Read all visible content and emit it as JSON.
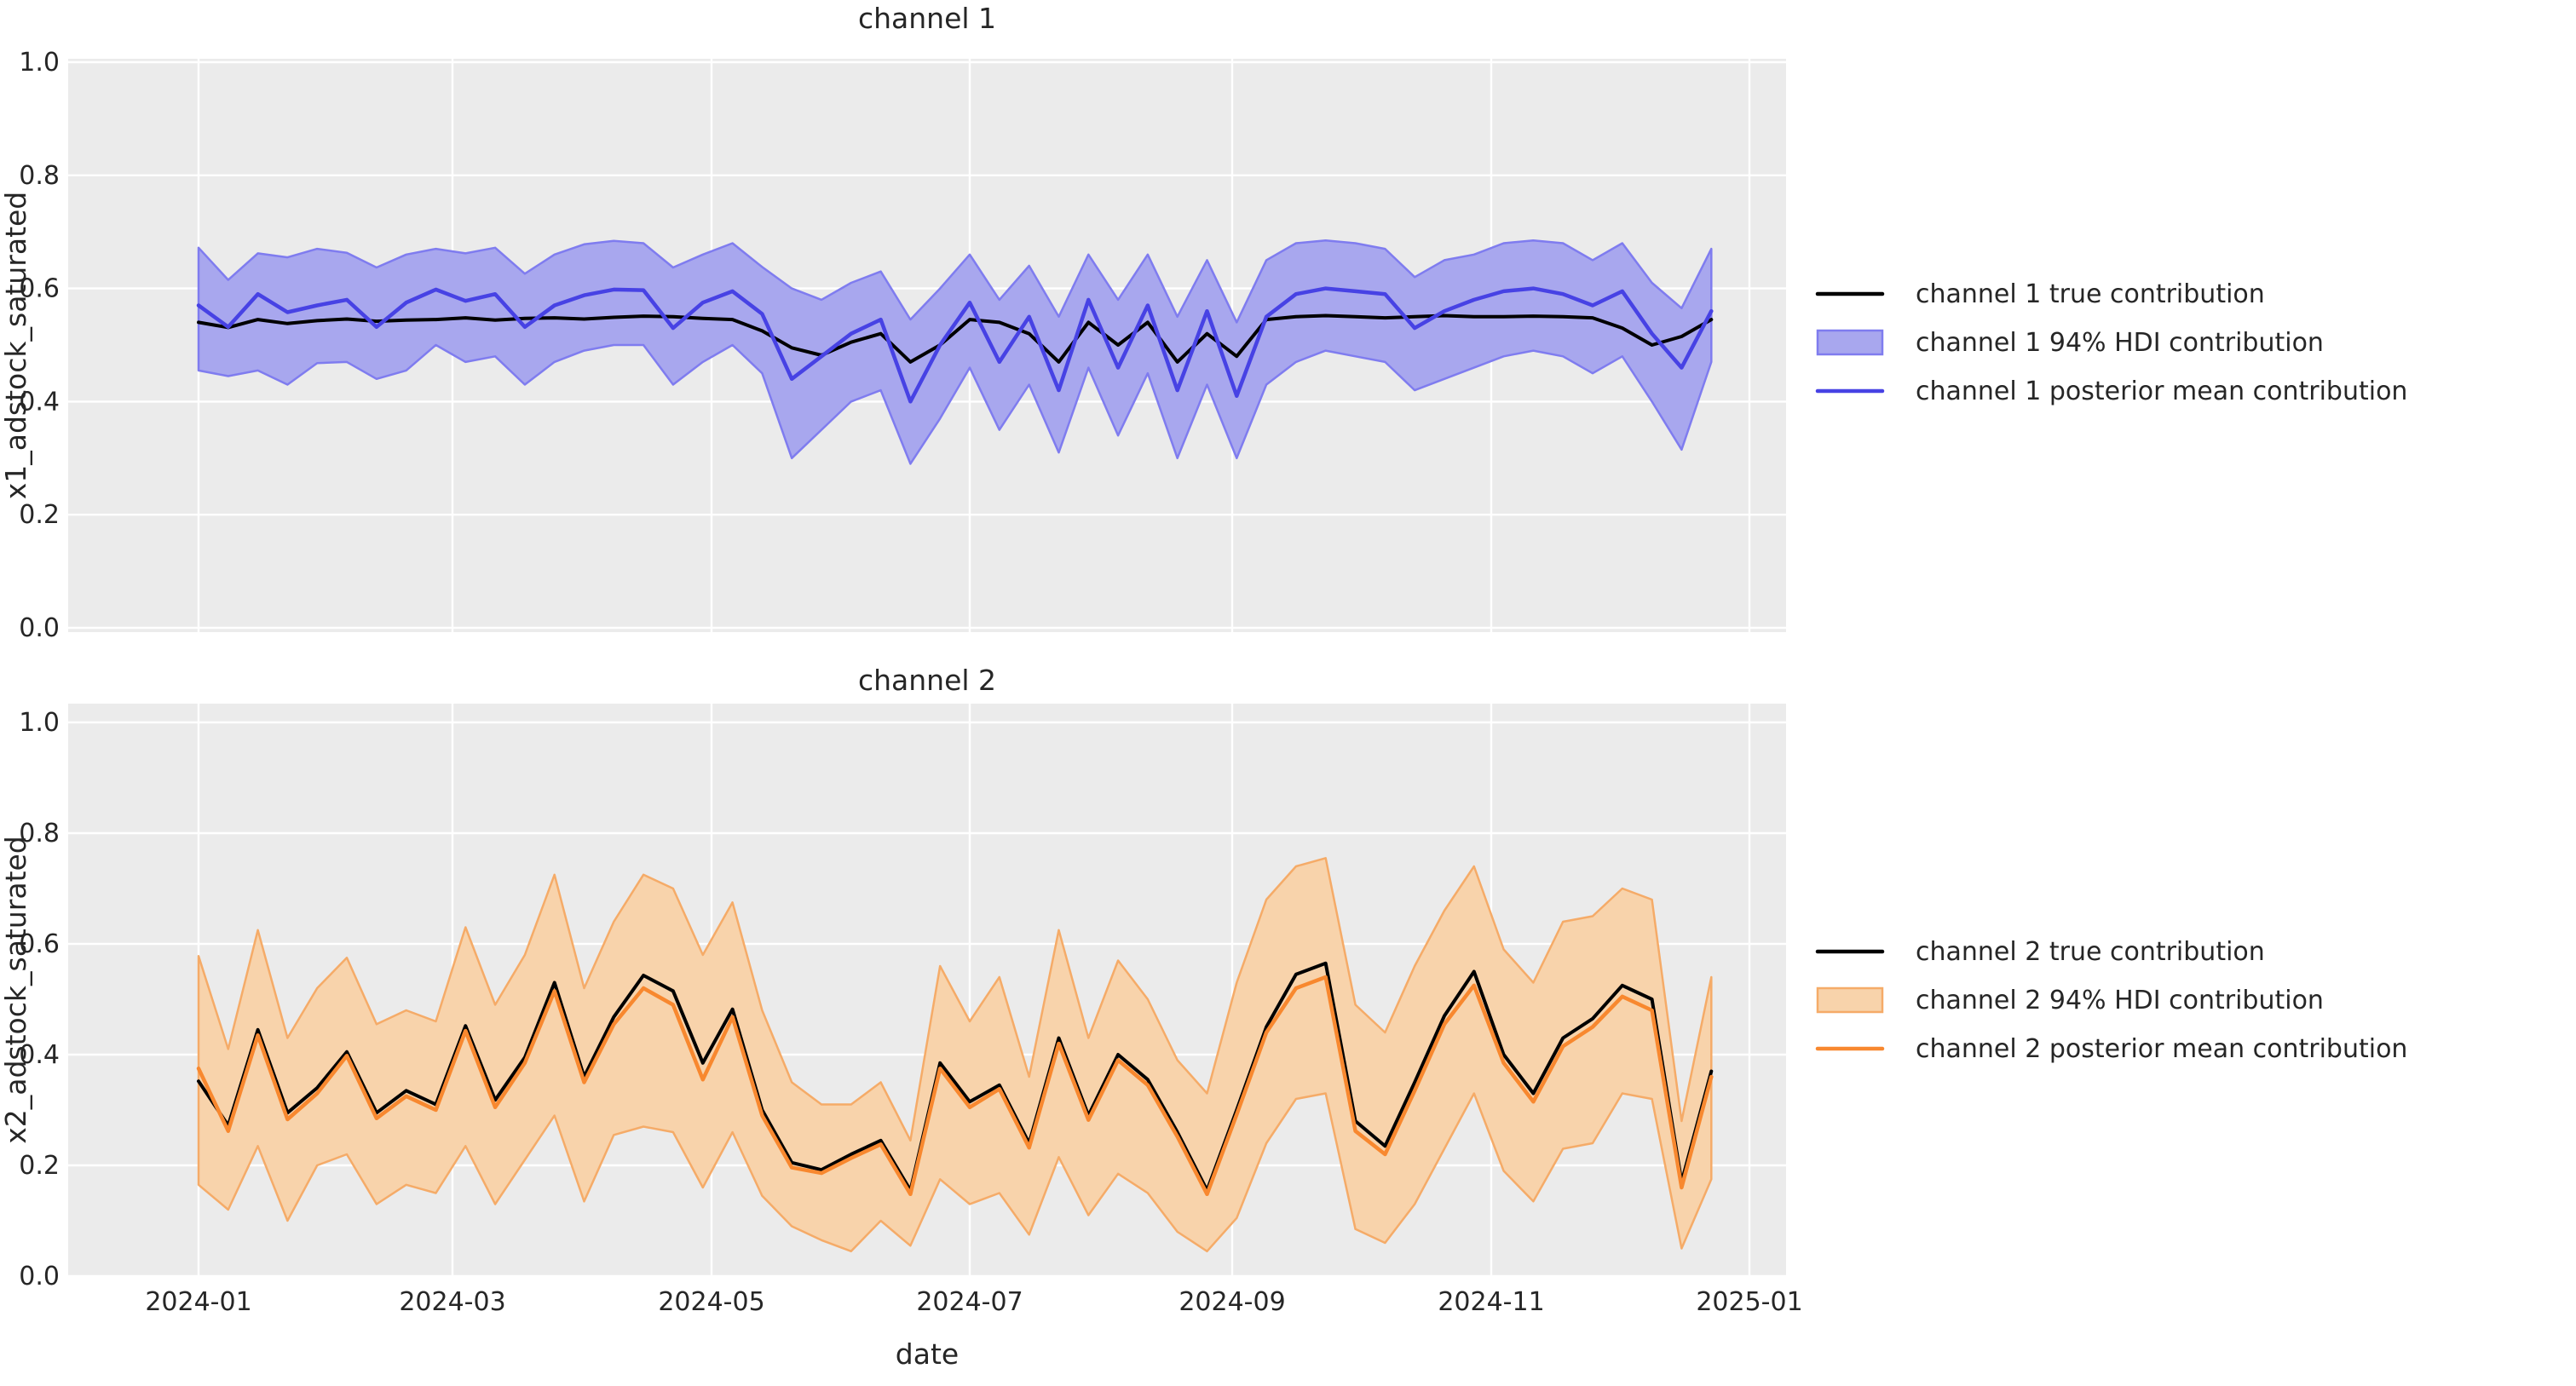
{
  "figure": {
    "background": "#ffffff",
    "axes_background": "#ebebeb",
    "grid_color": "#ffffff",
    "text_color": "#262626"
  },
  "xlabel": "date",
  "xtick_labels": [
    "2024-01",
    "2024-03",
    "2024-05",
    "2024-07",
    "2024-09",
    "2024-11",
    "2025-01"
  ],
  "ytick_labels": [
    "0.0",
    "0.2",
    "0.4",
    "0.6",
    "0.8",
    "1.0"
  ],
  "chart_data": [
    {
      "type": "line",
      "title": "channel 1",
      "ylabel": "x1_adstock_saturated",
      "ylim": [
        0.0,
        1.0
      ],
      "grid": true,
      "legend_position": "right",
      "x": [
        "2024-01-01",
        "2024-01-08",
        "2024-01-15",
        "2024-01-22",
        "2024-01-29",
        "2024-02-05",
        "2024-02-12",
        "2024-02-19",
        "2024-02-26",
        "2024-03-04",
        "2024-03-11",
        "2024-03-18",
        "2024-03-25",
        "2024-04-01",
        "2024-04-08",
        "2024-04-15",
        "2024-04-22",
        "2024-04-29",
        "2024-05-06",
        "2024-05-13",
        "2024-05-20",
        "2024-05-27",
        "2024-06-03",
        "2024-06-10",
        "2024-06-17",
        "2024-06-24",
        "2024-07-01",
        "2024-07-08",
        "2024-07-15",
        "2024-07-22",
        "2024-07-29",
        "2024-08-05",
        "2024-08-12",
        "2024-08-19",
        "2024-08-26",
        "2024-09-02",
        "2024-09-09",
        "2024-09-16",
        "2024-09-23",
        "2024-09-30",
        "2024-10-07",
        "2024-10-14",
        "2024-10-21",
        "2024-10-28",
        "2024-11-04",
        "2024-11-11",
        "2024-11-18",
        "2024-11-25",
        "2024-12-02",
        "2024-12-09",
        "2024-12-16",
        "2024-12-23"
      ],
      "series": [
        {
          "name": "channel 1 true contribution",
          "kind": "line",
          "color": "#000000",
          "values": [
            0.54,
            0.531,
            0.545,
            0.538,
            0.543,
            0.546,
            0.542,
            0.544,
            0.545,
            0.548,
            0.544,
            0.547,
            0.548,
            0.546,
            0.549,
            0.551,
            0.55,
            0.547,
            0.545,
            0.525,
            0.495,
            0.482,
            0.505,
            0.52,
            0.47,
            0.5,
            0.545,
            0.54,
            0.52,
            0.47,
            0.54,
            0.5,
            0.54,
            0.47,
            0.52,
            0.48,
            0.545,
            0.55,
            0.552,
            0.55,
            0.548,
            0.55,
            0.552,
            0.55,
            0.55,
            0.551,
            0.55,
            0.548,
            0.53,
            0.5,
            0.515,
            0.545
          ]
        },
        {
          "name": "channel 1 94% HDI contribution",
          "kind": "band",
          "fill_color": "#a8a7ee",
          "edge_color": "#7f7cef",
          "upper": [
            0.672,
            0.615,
            0.662,
            0.655,
            0.67,
            0.663,
            0.637,
            0.66,
            0.67,
            0.662,
            0.672,
            0.626,
            0.66,
            0.678,
            0.684,
            0.68,
            0.637,
            0.66,
            0.68,
            0.638,
            0.6,
            0.58,
            0.61,
            0.63,
            0.545,
            0.6,
            0.66,
            0.58,
            0.64,
            0.55,
            0.66,
            0.58,
            0.66,
            0.55,
            0.65,
            0.54,
            0.65,
            0.68,
            0.685,
            0.68,
            0.67,
            0.62,
            0.65,
            0.66,
            0.68,
            0.685,
            0.68,
            0.65,
            0.68,
            0.61,
            0.565,
            0.67
          ],
          "lower": [
            0.455,
            0.445,
            0.455,
            0.43,
            0.468,
            0.47,
            0.44,
            0.455,
            0.5,
            0.47,
            0.48,
            0.43,
            0.47,
            0.49,
            0.5,
            0.5,
            0.43,
            0.47,
            0.5,
            0.45,
            0.3,
            0.35,
            0.4,
            0.42,
            0.29,
            0.37,
            0.46,
            0.35,
            0.43,
            0.31,
            0.46,
            0.34,
            0.45,
            0.3,
            0.43,
            0.3,
            0.43,
            0.47,
            0.49,
            0.48,
            0.47,
            0.42,
            0.44,
            0.46,
            0.48,
            0.49,
            0.48,
            0.45,
            0.48,
            0.4,
            0.315,
            0.47
          ]
        },
        {
          "name": "channel 1 posterior mean contribution",
          "kind": "line",
          "color": "#4742e4",
          "values": [
            0.57,
            0.532,
            0.59,
            0.558,
            0.57,
            0.58,
            0.532,
            0.575,
            0.598,
            0.578,
            0.59,
            0.532,
            0.57,
            0.588,
            0.598,
            0.597,
            0.53,
            0.575,
            0.595,
            0.555,
            0.44,
            0.48,
            0.52,
            0.545,
            0.4,
            0.5,
            0.575,
            0.47,
            0.55,
            0.42,
            0.58,
            0.46,
            0.57,
            0.42,
            0.56,
            0.41,
            0.55,
            0.59,
            0.6,
            0.595,
            0.59,
            0.53,
            0.56,
            0.58,
            0.595,
            0.6,
            0.59,
            0.57,
            0.595,
            0.52,
            0.46,
            0.56
          ]
        }
      ]
    },
    {
      "type": "line",
      "title": "channel 2",
      "ylabel": "x2_adstock_saturated",
      "ylim": [
        0.0,
        1.0
      ],
      "grid": true,
      "legend_position": "right",
      "x": [
        "2024-01-01",
        "2024-01-08",
        "2024-01-15",
        "2024-01-22",
        "2024-01-29",
        "2024-02-05",
        "2024-02-12",
        "2024-02-19",
        "2024-02-26",
        "2024-03-04",
        "2024-03-11",
        "2024-03-18",
        "2024-03-25",
        "2024-04-01",
        "2024-04-08",
        "2024-04-15",
        "2024-04-22",
        "2024-04-29",
        "2024-05-06",
        "2024-05-13",
        "2024-05-20",
        "2024-05-27",
        "2024-06-03",
        "2024-06-10",
        "2024-06-17",
        "2024-06-24",
        "2024-07-01",
        "2024-07-08",
        "2024-07-15",
        "2024-07-22",
        "2024-07-29",
        "2024-08-05",
        "2024-08-12",
        "2024-08-19",
        "2024-08-26",
        "2024-09-02",
        "2024-09-09",
        "2024-09-16",
        "2024-09-23",
        "2024-09-30",
        "2024-10-07",
        "2024-10-14",
        "2024-10-21",
        "2024-10-28",
        "2024-11-04",
        "2024-11-11",
        "2024-11-18",
        "2024-11-25",
        "2024-12-02",
        "2024-12-09",
        "2024-12-16",
        "2024-12-23"
      ],
      "series": [
        {
          "name": "channel 2 true contribution",
          "kind": "line",
          "color": "#000000",
          "values": [
            0.352,
            0.272,
            0.445,
            0.295,
            0.34,
            0.405,
            0.295,
            0.335,
            0.31,
            0.452,
            0.318,
            0.395,
            0.53,
            0.36,
            0.468,
            0.543,
            0.515,
            0.385,
            0.482,
            0.3,
            0.205,
            0.192,
            0.22,
            0.245,
            0.155,
            0.385,
            0.315,
            0.345,
            0.24,
            0.43,
            0.29,
            0.4,
            0.355,
            0.26,
            0.155,
            0.3,
            0.45,
            0.545,
            0.565,
            0.28,
            0.235,
            0.35,
            0.47,
            0.55,
            0.4,
            0.33,
            0.43,
            0.465,
            0.525,
            0.5,
            0.17,
            0.37
          ]
        },
        {
          "name": "channel 2 94% HDI contribution",
          "kind": "band",
          "fill_color": "#f8d3ab",
          "edge_color": "#f5ab68",
          "upper": [
            0.578,
            0.41,
            0.625,
            0.43,
            0.52,
            0.575,
            0.455,
            0.48,
            0.46,
            0.63,
            0.49,
            0.58,
            0.725,
            0.52,
            0.64,
            0.725,
            0.7,
            0.58,
            0.675,
            0.48,
            0.35,
            0.31,
            0.31,
            0.35,
            0.245,
            0.56,
            0.46,
            0.54,
            0.36,
            0.625,
            0.43,
            0.57,
            0.5,
            0.39,
            0.33,
            0.53,
            0.68,
            0.74,
            0.755,
            0.49,
            0.44,
            0.56,
            0.66,
            0.74,
            0.59,
            0.53,
            0.64,
            0.65,
            0.7,
            0.68,
            0.28,
            0.54
          ],
          "lower": [
            0.165,
            0.12,
            0.235,
            0.1,
            0.2,
            0.22,
            0.13,
            0.165,
            0.15,
            0.235,
            0.13,
            0.21,
            0.29,
            0.135,
            0.255,
            0.27,
            0.26,
            0.16,
            0.26,
            0.145,
            0.09,
            0.065,
            0.045,
            0.1,
            0.055,
            0.175,
            0.13,
            0.15,
            0.075,
            0.215,
            0.11,
            0.185,
            0.15,
            0.08,
            0.045,
            0.105,
            0.24,
            0.32,
            0.33,
            0.085,
            0.06,
            0.13,
            0.23,
            0.33,
            0.19,
            0.135,
            0.23,
            0.24,
            0.33,
            0.32,
            0.05,
            0.175
          ]
        },
        {
          "name": "channel 2 posterior mean contribution",
          "kind": "line",
          "color": "#f8882f",
          "values": [
            0.375,
            0.262,
            0.435,
            0.283,
            0.33,
            0.398,
            0.285,
            0.325,
            0.3,
            0.443,
            0.305,
            0.385,
            0.515,
            0.35,
            0.455,
            0.52,
            0.49,
            0.355,
            0.468,
            0.29,
            0.196,
            0.186,
            0.213,
            0.238,
            0.148,
            0.375,
            0.305,
            0.338,
            0.232,
            0.42,
            0.282,
            0.39,
            0.345,
            0.252,
            0.148,
            0.292,
            0.44,
            0.52,
            0.54,
            0.262,
            0.22,
            0.335,
            0.455,
            0.525,
            0.385,
            0.315,
            0.415,
            0.45,
            0.505,
            0.48,
            0.16,
            0.36
          ]
        }
      ]
    }
  ]
}
